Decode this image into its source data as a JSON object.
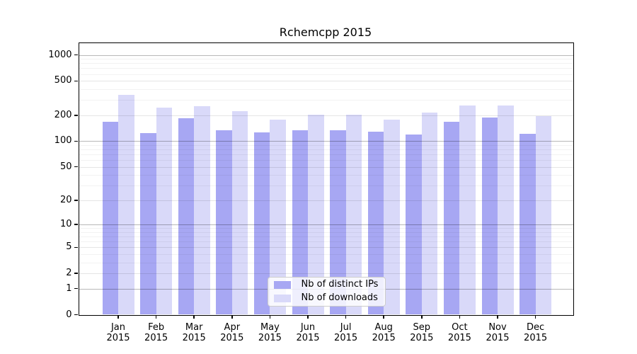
{
  "chart_data": {
    "type": "bar",
    "title": "Rchemcpp 2015",
    "categories": [
      "Jan",
      "Feb",
      "Mar",
      "Apr",
      "May",
      "Jun",
      "Jul",
      "Aug",
      "Sep",
      "Oct",
      "Nov",
      "Dec"
    ],
    "x_tick_year": "2015",
    "series": [
      {
        "name": "Nb of distinct IPs",
        "color": "#a7a7f3",
        "values": [
          168,
          125,
          184,
          134,
          126,
          133,
          134,
          130,
          119,
          168,
          187,
          122
        ]
      },
      {
        "name": "Nb of downloads",
        "color": "#d9d9f9",
        "values": [
          347,
          246,
          255,
          222,
          177,
          202,
          202,
          179,
          215,
          262,
          262,
          196
        ]
      }
    ],
    "y_ticks": [
      0,
      1,
      2,
      5,
      10,
      20,
      50,
      100,
      200,
      500,
      1000
    ],
    "y_scale": "log10(1+v)",
    "ylim": [
      0,
      1385
    ],
    "grid": "horizontal, minor lines at 2-9 per decade, darker lines at powers of 10",
    "legend_position": "lower center of plot",
    "xlabel": "",
    "ylabel": ""
  }
}
